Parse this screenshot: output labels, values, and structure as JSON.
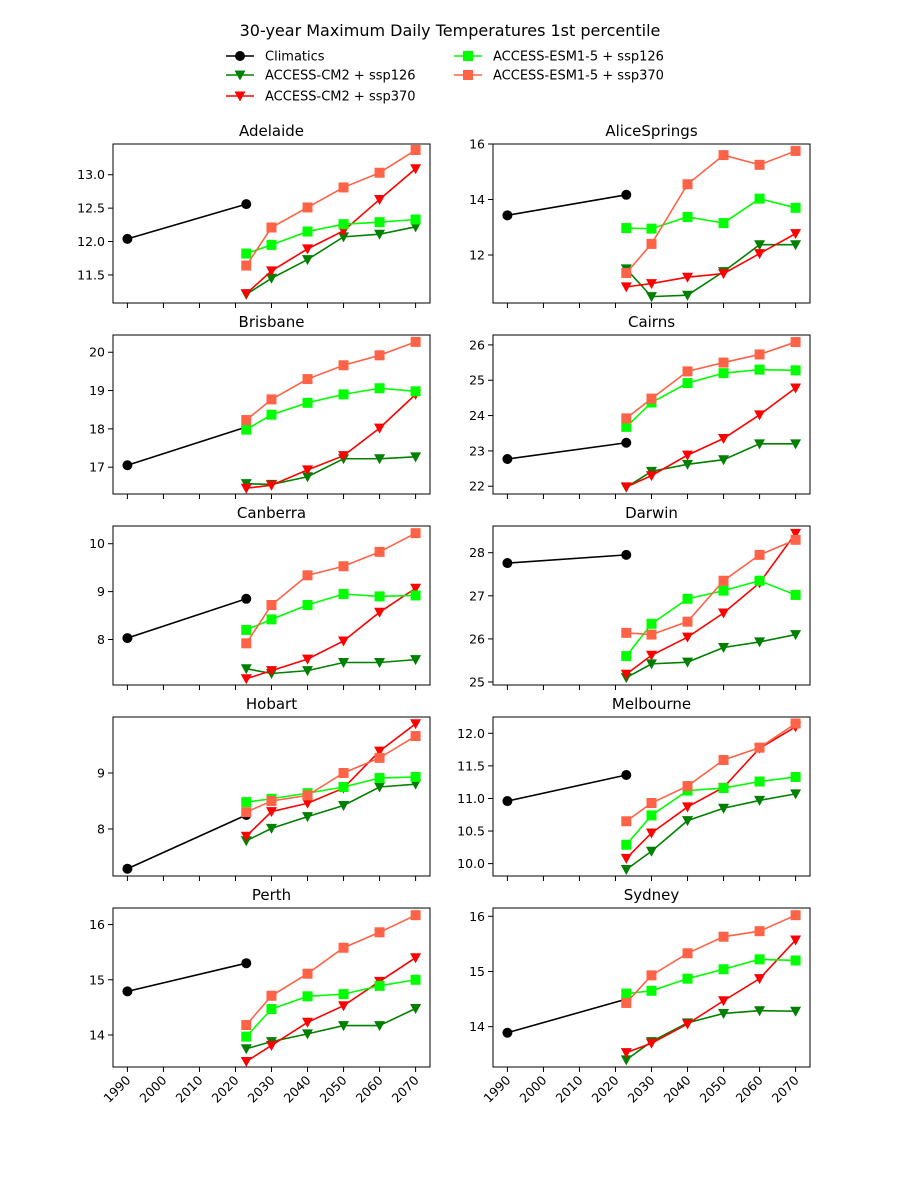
{
  "chart_data": {
    "type": "line",
    "title": "30-year Maximum Daily Temperatures 1st percentile",
    "legend": {
      "placement": "top-center",
      "entries": [
        {
          "name": "Climatics",
          "color": "#000000",
          "marker": "circle"
        },
        {
          "name": "ACCESS-CM2 + ssp126",
          "color": "#008000",
          "marker": "triangle-down"
        },
        {
          "name": "ACCESS-CM2 + ssp370",
          "color": "#ff0000",
          "marker": "triangle-down"
        },
        {
          "name": "ACCESS-ESM1-5 + ssp126",
          "color": "#00ff00",
          "marker": "square"
        },
        {
          "name": "ACCESS-ESM1-5 + ssp370",
          "color": "#ff6347",
          "marker": "square"
        }
      ]
    },
    "xlabel": "",
    "ylabel": "",
    "xlim": [
      1986,
      2074
    ],
    "x_ticks": [
      "1990",
      "2000",
      "2010",
      "2020",
      "2030",
      "2040",
      "2050",
      "2060",
      "2070"
    ],
    "x_climatics": [
      1990,
      2023
    ],
    "x_models": [
      2023,
      2030,
      2040,
      2050,
      2060,
      2070
    ],
    "subplots": [
      {
        "title": "Adelaide",
        "ylim": [
          11.08,
          13.46
        ],
        "y_ticks": [
          "11.5",
          "12.0",
          "12.5",
          "13.0"
        ],
        "series": {
          "Climatics": [
            12.04,
            12.56
          ],
          "ACCESS-CM2 + ssp126": [
            11.21,
            11.45,
            11.73,
            12.07,
            12.11,
            12.22
          ],
          "ACCESS-CM2 + ssp370": [
            11.22,
            11.56,
            11.89,
            12.16,
            12.63,
            13.09
          ],
          "ACCESS-ESM1-5 + ssp126": [
            11.82,
            11.95,
            12.15,
            12.26,
            12.29,
            12.33
          ],
          "ACCESS-ESM1-5 + ssp370": [
            11.64,
            12.21,
            12.51,
            12.81,
            13.03,
            13.37
          ]
        }
      },
      {
        "title": "AliceSprings",
        "ylim": [
          10.27,
          16.0
        ],
        "y_ticks": [
          "12",
          "14",
          "16"
        ],
        "series": {
          "Climatics": [
            13.43,
            14.17
          ],
          "ACCESS-CM2 + ssp126": [
            11.5,
            10.5,
            10.55,
            11.4,
            12.37,
            12.37
          ],
          "ACCESS-CM2 + ssp370": [
            10.85,
            10.97,
            11.2,
            11.33,
            12.05,
            12.77
          ],
          "ACCESS-ESM1-5 + ssp126": [
            12.97,
            12.95,
            13.37,
            13.15,
            14.03,
            13.7
          ],
          "ACCESS-ESM1-5 + ssp370": [
            11.35,
            12.4,
            14.55,
            15.6,
            15.25,
            15.75
          ]
        }
      },
      {
        "title": "Brisbane",
        "ylim": [
          16.3,
          20.45
        ],
        "y_ticks": [
          "17",
          "18",
          "19",
          "20"
        ],
        "series": {
          "Climatics": [
            17.05,
            18.05
          ],
          "ACCESS-CM2 + ssp126": [
            16.57,
            16.55,
            16.75,
            17.22,
            17.22,
            17.27
          ],
          "ACCESS-CM2 + ssp370": [
            16.45,
            16.53,
            16.93,
            17.3,
            18.02,
            18.9
          ],
          "ACCESS-ESM1-5 + ssp126": [
            17.98,
            18.37,
            18.68,
            18.9,
            19.06,
            18.98
          ],
          "ACCESS-ESM1-5 + ssp370": [
            18.23,
            18.77,
            19.3,
            19.66,
            19.92,
            20.27
          ]
        }
      },
      {
        "title": "Cairns",
        "ylim": [
          21.78,
          26.28
        ],
        "y_ticks": [
          "22",
          "23",
          "24",
          "25",
          "26"
        ],
        "series": {
          "Climatics": [
            22.77,
            23.23
          ],
          "ACCESS-CM2 + ssp126": [
            21.97,
            22.42,
            22.62,
            22.75,
            23.2,
            23.2
          ],
          "ACCESS-CM2 + ssp370": [
            21.98,
            22.3,
            22.88,
            23.35,
            24.02,
            24.78
          ],
          "ACCESS-ESM1-5 + ssp126": [
            23.68,
            24.37,
            24.92,
            25.2,
            25.3,
            25.28
          ],
          "ACCESS-ESM1-5 + ssp370": [
            23.92,
            24.48,
            25.25,
            25.5,
            25.73,
            26.08
          ]
        }
      },
      {
        "title": "Canberra",
        "ylim": [
          7.05,
          10.37
        ],
        "y_ticks": [
          "8",
          "9",
          "10"
        ],
        "series": {
          "Climatics": [
            8.03,
            8.85
          ],
          "ACCESS-CM2 + ssp126": [
            7.39,
            7.29,
            7.35,
            7.52,
            7.52,
            7.58
          ],
          "ACCESS-CM2 + ssp370": [
            7.18,
            7.35,
            7.59,
            7.97,
            8.57,
            9.07
          ],
          "ACCESS-ESM1-5 + ssp126": [
            8.2,
            8.42,
            8.72,
            8.95,
            8.9,
            8.92
          ],
          "ACCESS-ESM1-5 + ssp370": [
            7.92,
            8.72,
            9.34,
            9.53,
            9.83,
            10.22
          ]
        }
      },
      {
        "title": "Darwin",
        "ylim": [
          24.93,
          28.62
        ],
        "y_ticks": [
          "25",
          "26",
          "27",
          "28"
        ],
        "series": {
          "Climatics": [
            27.76,
            27.95
          ],
          "ACCESS-CM2 + ssp126": [
            25.1,
            25.42,
            25.46,
            25.8,
            25.93,
            26.1
          ],
          "ACCESS-CM2 + ssp370": [
            25.18,
            25.62,
            26.04,
            26.6,
            27.3,
            28.45
          ],
          "ACCESS-ESM1-5 + ssp126": [
            25.6,
            26.35,
            26.93,
            27.12,
            27.35,
            27.02
          ],
          "ACCESS-ESM1-5 + ssp370": [
            26.14,
            26.1,
            26.4,
            27.35,
            27.95,
            28.3
          ]
        }
      },
      {
        "title": "Hobart",
        "ylim": [
          7.16,
          10.0
        ],
        "y_ticks": [
          "8",
          "9"
        ],
        "series": {
          "Climatics": [
            7.29,
            8.25
          ],
          "ACCESS-CM2 + ssp126": [
            7.79,
            8.01,
            8.22,
            8.42,
            8.75,
            8.8
          ],
          "ACCESS-CM2 + ssp370": [
            7.87,
            8.31,
            8.46,
            8.73,
            9.39,
            9.88
          ],
          "ACCESS-ESM1-5 + ssp126": [
            8.48,
            8.54,
            8.64,
            8.75,
            8.91,
            8.93
          ],
          "ACCESS-ESM1-5 + ssp370": [
            8.3,
            8.5,
            8.6,
            9.0,
            9.27,
            9.66
          ]
        }
      },
      {
        "title": "Melbourne",
        "ylim": [
          9.81,
          12.25
        ],
        "y_ticks": [
          "10.0",
          "10.5",
          "11.0",
          "11.5",
          "12.0"
        ],
        "series": {
          "Climatics": [
            10.96,
            11.36
          ],
          "ACCESS-CM2 + ssp126": [
            9.91,
            10.19,
            10.66,
            10.85,
            10.97,
            11.07
          ],
          "ACCESS-CM2 + ssp370": [
            10.08,
            10.47,
            10.87,
            11.17,
            11.77,
            12.1
          ],
          "ACCESS-ESM1-5 + ssp126": [
            10.29,
            10.74,
            11.12,
            11.16,
            11.26,
            11.33
          ],
          "ACCESS-ESM1-5 + ssp370": [
            10.65,
            10.93,
            11.19,
            11.59,
            11.78,
            12.15
          ]
        }
      },
      {
        "title": "Perth",
        "ylim": [
          13.42,
          16.3
        ],
        "y_ticks": [
          "14",
          "15",
          "16"
        ],
        "series": {
          "Climatics": [
            14.79,
            15.3
          ],
          "ACCESS-CM2 + ssp126": [
            13.75,
            13.88,
            14.02,
            14.17,
            14.17,
            14.48
          ],
          "ACCESS-CM2 + ssp370": [
            13.52,
            13.81,
            14.23,
            14.53,
            14.97,
            15.4
          ],
          "ACCESS-ESM1-5 + ssp126": [
            13.97,
            14.47,
            14.7,
            14.74,
            14.89,
            15.0
          ],
          "ACCESS-ESM1-5 + ssp370": [
            14.18,
            14.71,
            15.11,
            15.58,
            15.86,
            16.17
          ]
        }
      },
      {
        "title": "Sydney",
        "ylim": [
          13.27,
          16.15
        ],
        "y_ticks": [
          "14",
          "15",
          "16"
        ],
        "series": {
          "Climatics": [
            13.89,
            14.5
          ],
          "ACCESS-CM2 + ssp126": [
            13.4,
            13.73,
            14.07,
            14.24,
            14.29,
            14.28
          ],
          "ACCESS-CM2 + ssp370": [
            13.53,
            13.7,
            14.05,
            14.47,
            14.87,
            15.57
          ],
          "ACCESS-ESM1-5 + ssp126": [
            14.6,
            14.65,
            14.87,
            15.04,
            15.22,
            15.2
          ],
          "ACCESS-ESM1-5 + ssp370": [
            14.43,
            14.93,
            15.33,
            15.63,
            15.73,
            16.02
          ]
        }
      }
    ]
  }
}
